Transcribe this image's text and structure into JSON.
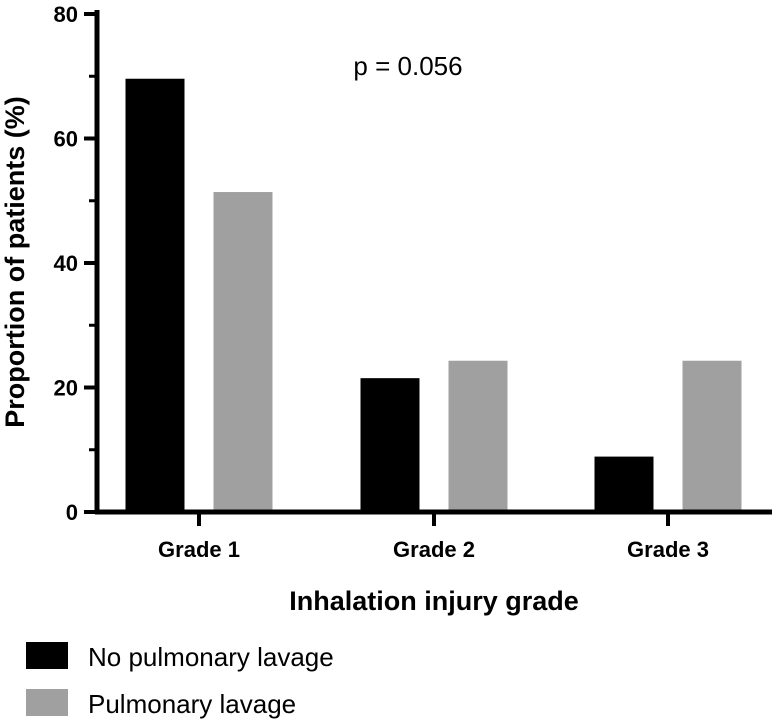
{
  "chart_data": {
    "type": "bar",
    "categories": [
      "Grade 1",
      "Grade 2",
      "Grade 3"
    ],
    "series": [
      {
        "name": "No pulmonary lavage",
        "values": [
          69.6,
          21.5,
          8.9
        ],
        "color": "#000000"
      },
      {
        "name": "Pulmonary lavage",
        "values": [
          51.4,
          24.3,
          24.3
        ],
        "color": "#a0a0a0"
      }
    ],
    "title": "",
    "xlabel": "Inhalation injury grade",
    "ylabel": "Proportion of patients (%)",
    "ylim": [
      0,
      80
    ],
    "yticks": [
      "0",
      "20",
      "40",
      "60",
      "80"
    ],
    "annotation": "p = 0.056",
    "legend_position": "bottom-left"
  }
}
